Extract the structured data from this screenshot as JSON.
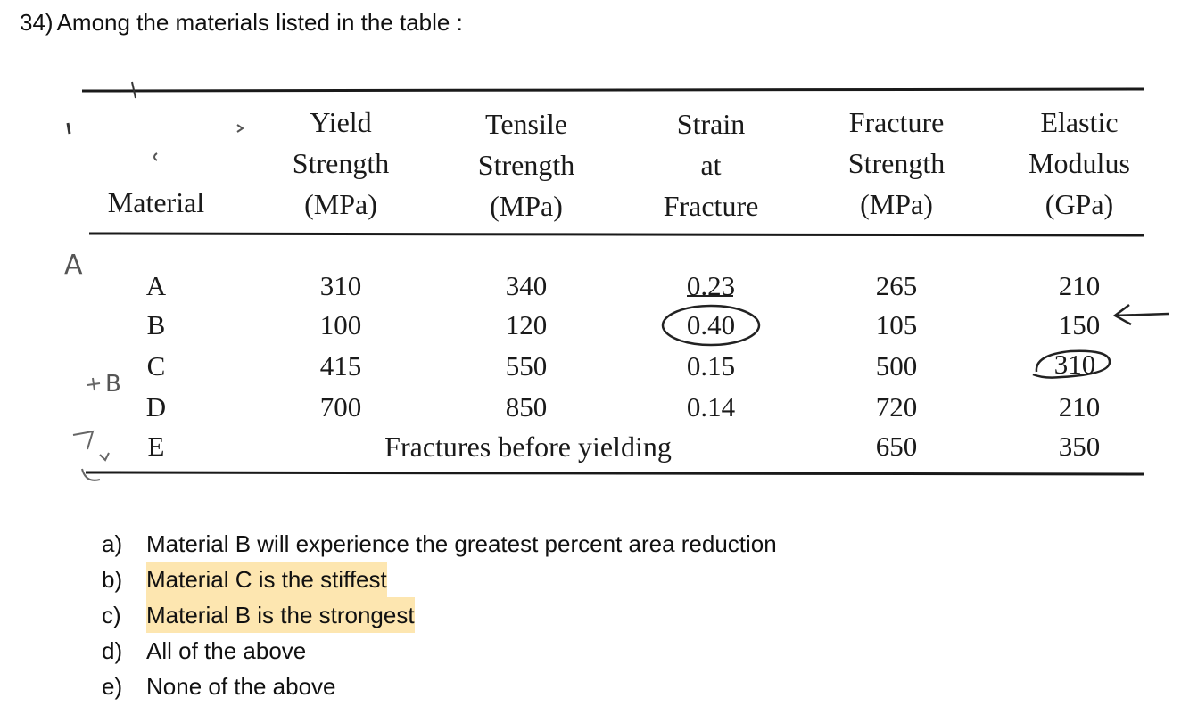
{
  "question": {
    "number": "34)",
    "text": "Among the materials listed in the table :"
  },
  "table": {
    "headers": {
      "material": [
        "Material"
      ],
      "yield": [
        "Yield",
        "Strength",
        "(MPa)"
      ],
      "tensile": [
        "Tensile",
        "Strength",
        "(MPa)"
      ],
      "strain": [
        "Strain",
        "at",
        "Fracture"
      ],
      "fracture": [
        "Fracture",
        "Strength",
        "(MPa)"
      ],
      "elastic": [
        "Elastic",
        "Modulus",
        "(GPa)"
      ]
    },
    "rows": [
      {
        "material": "A",
        "yield": "310",
        "tensile": "340",
        "strain": "0.23",
        "fracture": "265",
        "elastic": "210"
      },
      {
        "material": "B",
        "yield": "100",
        "tensile": "120",
        "strain": "0.40",
        "fracture": "105",
        "elastic": "150"
      },
      {
        "material": "C",
        "yield": "415",
        "tensile": "550",
        "strain": "0.15",
        "fracture": "500",
        "elastic": "310"
      },
      {
        "material": "D",
        "yield": "700",
        "tensile": "850",
        "strain": "0.14",
        "fracture": "720",
        "elastic": "210"
      },
      {
        "material": "E",
        "merged_note": "Fractures before yielding",
        "fracture": "650",
        "elastic": "350"
      }
    ],
    "handwritten": {
      "row_a_note": "A",
      "row_c_note": "B"
    },
    "line_color": "#1a1a1a"
  },
  "options": [
    {
      "letter": "a)",
      "text": "Material B will experience the greatest percent area reduction",
      "highlighted": false
    },
    {
      "letter": "b)",
      "text": "Material C is the stiffest",
      "highlighted": true
    },
    {
      "letter": "c)",
      "text": "Material B is the strongest",
      "highlighted": true
    },
    {
      "letter": "d)",
      "text": "All of the above",
      "highlighted": false
    },
    {
      "letter": "e)",
      "text": "None of the above",
      "highlighted": false
    }
  ],
  "highlight_color": "#fde6b0"
}
